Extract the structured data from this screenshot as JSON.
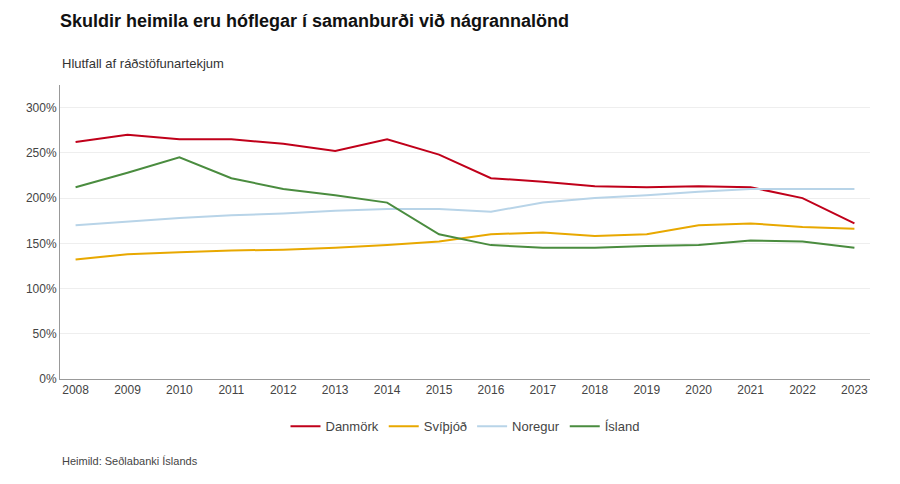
{
  "chart_data": {
    "type": "line",
    "title": "Skuldir heimila eru hóflegar í samanburði við nágrannalönd",
    "subtitle": "Hlutfall af ráðstöfunartekjum",
    "source": "Heimild: Seðlabanki Íslands",
    "x": [
      2008,
      2009,
      2010,
      2011,
      2012,
      2013,
      2014,
      2015,
      2016,
      2017,
      2018,
      2019,
      2020,
      2021,
      2022,
      2023
    ],
    "series": [
      {
        "name": "Danmörk",
        "color": "#c0001a",
        "values": [
          262,
          270,
          265,
          265,
          260,
          252,
          265,
          248,
          222,
          218,
          213,
          212,
          213,
          212,
          200,
          172
        ]
      },
      {
        "name": "Svíþjóð",
        "color": "#e8a800",
        "values": [
          132,
          138,
          140,
          142,
          143,
          145,
          148,
          152,
          160,
          162,
          158,
          160,
          170,
          172,
          168,
          166
        ]
      },
      {
        "name": "Noregur",
        "color": "#b8d4e8",
        "values": [
          170,
          174,
          178,
          181,
          183,
          186,
          188,
          188,
          185,
          195,
          200,
          203,
          207,
          210,
          210,
          210
        ]
      },
      {
        "name": "Ísland",
        "color": "#4a8c3f",
        "values": [
          212,
          228,
          245,
          222,
          210,
          203,
          195,
          160,
          148,
          145,
          145,
          147,
          148,
          153,
          152,
          145
        ]
      }
    ],
    "xlim": [
      2007.7,
      2023.3
    ],
    "xticks": [
      2008,
      2009,
      2010,
      2011,
      2012,
      2013,
      2014,
      2015,
      2016,
      2017,
      2018,
      2019,
      2020,
      2021,
      2022,
      2023
    ],
    "ylim": [
      0,
      325
    ],
    "yticks": [
      {
        "value": 0,
        "label": "0%"
      },
      {
        "value": 50,
        "label": "50%"
      },
      {
        "value": 100,
        "label": "100%"
      },
      {
        "value": 150,
        "label": "150%"
      },
      {
        "value": 200,
        "label": "200%"
      },
      {
        "value": 250,
        "label": "250%"
      },
      {
        "value": 300,
        "label": "300%"
      }
    ],
    "grid": true,
    "legend": "bottom"
  }
}
